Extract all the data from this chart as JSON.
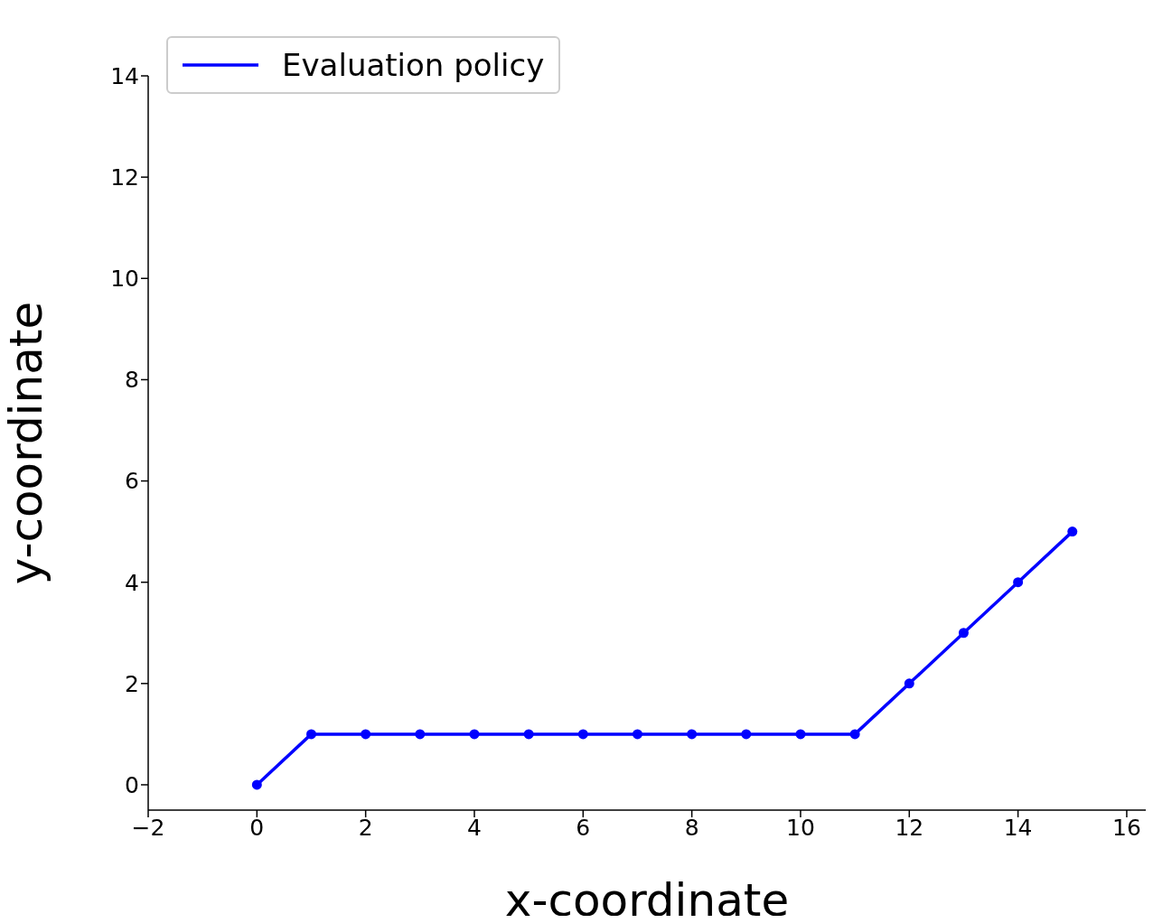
{
  "chart_data": {
    "type": "line",
    "xlabel": "x-coordinate",
    "ylabel": "y-coordinate",
    "x": [
      0,
      1,
      2,
      3,
      4,
      5,
      6,
      7,
      8,
      9,
      10,
      11,
      12,
      13,
      14,
      15
    ],
    "series": [
      {
        "name": "Evaluation policy",
        "color": "#0000ff",
        "values": [
          0,
          1,
          1,
          1,
          1,
          1,
          1,
          1,
          1,
          1,
          1,
          1,
          2,
          3,
          4,
          5
        ]
      }
    ],
    "xlim": [
      -2,
      16.35
    ],
    "ylim": [
      -0.5,
      14
    ],
    "xticks": [
      {
        "value": -2,
        "label": "−2"
      },
      0,
      2,
      4,
      6,
      8,
      10,
      12,
      14,
      16
    ],
    "yticks": [
      0,
      2,
      4,
      6,
      8,
      10,
      12,
      14
    ],
    "grid": false,
    "legend": "top left",
    "marker": "circle",
    "line_style": "solid"
  }
}
